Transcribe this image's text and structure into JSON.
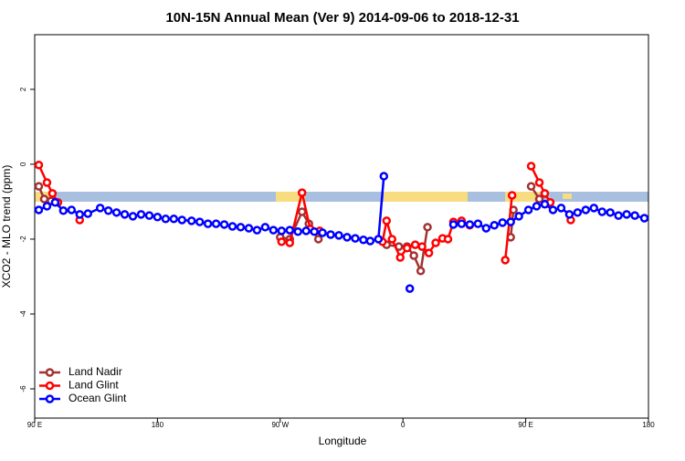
{
  "chart_data": {
    "type": "line",
    "title": "10N-15N Annual Mean (Ver 9)   2014-09-06 to 2018-12-31",
    "x_label": "Longitude",
    "y_label": "XCO2 - MLO trend (ppm)",
    "xlim": [
      90,
      540
    ],
    "ylim": [
      -6.78,
      3.46
    ],
    "xticks": [
      {
        "value": 90,
        "label": "90 E"
      },
      180,
      {
        "value": 270,
        "label": "90 W"
      },
      {
        "value": 360,
        "label": "0"
      },
      {
        "value": 450,
        "label": "90 E"
      },
      {
        "value": 540,
        "label": "180"
      }
    ],
    "yticks": [
      -6,
      -4,
      -2,
      0,
      2
    ],
    "legend": "bottom-left",
    "series": [
      {
        "name": "Land Nadir",
        "color": "#a33232",
        "x": [
          93,
          97,
          102,
          null,
          270,
          277,
          286,
          291,
          298,
          null,
          348,
          357,
          363,
          368,
          373,
          378,
          null,
          439,
          441,
          null,
          454,
          460
        ],
        "values": [
          -0.59,
          -0.93,
          -0.98,
          null,
          -1.95,
          -2.0,
          -1.27,
          -1.59,
          -2.0,
          null,
          -2.15,
          -2.2,
          -2.2,
          -2.44,
          -2.85,
          -1.68,
          null,
          -1.95,
          -1.22,
          null,
          -0.59,
          -0.93
        ]
      },
      {
        "name": "Land Glint",
        "color": "#ff0000",
        "x": [
          93,
          99,
          103,
          107,
          null,
          123,
          null,
          271,
          277,
          286,
          292,
          299,
          null,
          345,
          348,
          352,
          358,
          363,
          369,
          374,
          379,
          384,
          389,
          393,
          397,
          403,
          409,
          null,
          435,
          440,
          null,
          454,
          460,
          464,
          468,
          null,
          483
        ],
        "values": [
          -0.02,
          -0.49,
          -0.78,
          -1.02,
          null,
          -1.49,
          null,
          -2.07,
          -2.1,
          -0.76,
          -1.73,
          -1.78,
          null,
          -2.07,
          -1.51,
          -2.0,
          -2.49,
          -2.24,
          -2.15,
          -2.2,
          -2.37,
          -2.1,
          -1.98,
          -2.0,
          -1.54,
          -1.51,
          -1.63,
          null,
          -2.56,
          -0.83,
          null,
          -0.05,
          -0.49,
          -0.78,
          -1.02,
          null,
          -1.49
        ]
      },
      {
        "name": "Ocean Glint",
        "color": "#0000ff",
        "x": [
          93,
          99,
          105,
          111,
          117,
          123,
          129,
          138,
          144,
          150,
          156,
          162,
          168,
          174,
          180,
          186,
          192,
          198,
          205,
          211,
          217,
          223,
          229,
          235,
          241,
          247,
          253,
          259,
          265,
          271,
          277,
          283,
          289,
          295,
          301,
          307,
          313,
          319,
          325,
          331,
          336,
          342,
          346,
          null,
          365,
          null,
          397,
          403,
          409,
          415,
          421,
          427,
          433,
          439,
          445,
          452,
          458,
          464,
          470,
          476,
          482,
          488,
          494,
          500,
          506,
          512,
          518,
          524,
          530,
          537
        ],
        "values": [
          -1.22,
          -1.12,
          -1.02,
          -1.24,
          -1.22,
          -1.34,
          -1.32,
          -1.17,
          -1.24,
          -1.29,
          -1.34,
          -1.39,
          -1.34,
          -1.37,
          -1.41,
          -1.46,
          -1.46,
          -1.49,
          -1.51,
          -1.54,
          -1.59,
          -1.59,
          -1.61,
          -1.66,
          -1.68,
          -1.71,
          -1.76,
          -1.68,
          -1.76,
          -1.78,
          -1.76,
          -1.8,
          -1.78,
          -1.8,
          -1.83,
          -1.88,
          -1.9,
          -1.95,
          -1.98,
          -2.02,
          -2.05,
          -2.0,
          -0.32,
          null,
          -3.32,
          null,
          -1.61,
          -1.59,
          -1.61,
          -1.59,
          -1.71,
          -1.63,
          -1.56,
          -1.54,
          -1.39,
          -1.22,
          -1.12,
          -1.07,
          -1.22,
          -1.17,
          -1.34,
          -1.29,
          -1.22,
          -1.17,
          -1.27,
          -1.29,
          -1.37,
          -1.34,
          -1.37,
          -1.44
        ]
      }
    ]
  }
}
